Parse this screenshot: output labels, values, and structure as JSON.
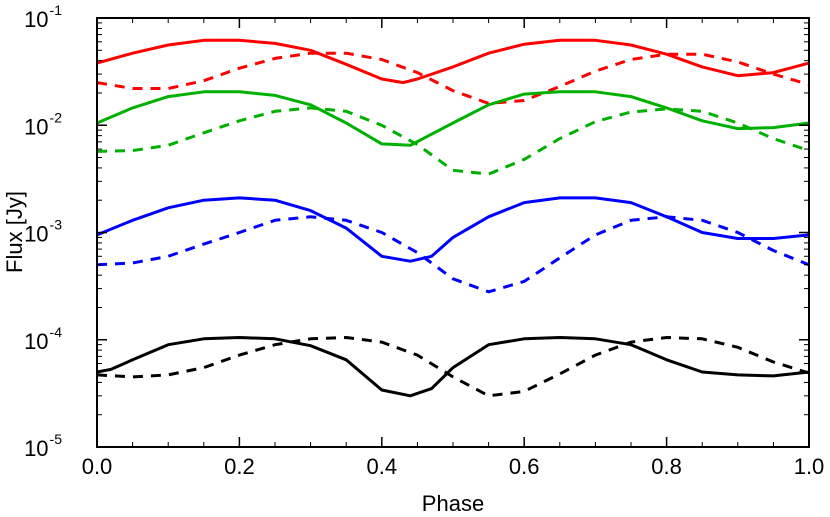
{
  "chart_data": {
    "type": "line",
    "xlabel": "Phase",
    "ylabel": "Flux [Jy]",
    "xlim": [
      0.0,
      1.0
    ],
    "ylim": [
      1e-05,
      0.1
    ],
    "yscale": "log",
    "grid": false,
    "x_ticks": [
      "0.0",
      "0.2",
      "0.4",
      "0.6",
      "0.8",
      "1.0"
    ],
    "x_tick_values": [
      0.0,
      0.2,
      0.4,
      0.6,
      0.8,
      1.0
    ],
    "y_ticks": [
      {
        "base": "10",
        "exp": "-5",
        "value": 1e-05
      },
      {
        "base": "10",
        "exp": "-4",
        "value": 0.0001
      },
      {
        "base": "10",
        "exp": "-3",
        "value": 0.001
      },
      {
        "base": "10",
        "exp": "-2",
        "value": 0.01
      },
      {
        "base": "10",
        "exp": "-1",
        "value": 0.1
      }
    ],
    "series": [
      {
        "color": "#ff0000",
        "style": "solid",
        "x": [
          0.0,
          0.05,
          0.1,
          0.15,
          0.2,
          0.25,
          0.3,
          0.35,
          0.4,
          0.43,
          0.45,
          0.5,
          0.55,
          0.6,
          0.65,
          0.7,
          0.75,
          0.8,
          0.85,
          0.9,
          0.95,
          1.0
        ],
        "values": [
          0.038,
          0.047,
          0.056,
          0.062,
          0.062,
          0.058,
          0.05,
          0.037,
          0.027,
          0.025,
          0.027,
          0.035,
          0.047,
          0.057,
          0.062,
          0.062,
          0.056,
          0.046,
          0.035,
          0.029,
          0.031,
          0.038
        ]
      },
      {
        "color": "#ff0000",
        "style": "dashed",
        "x": [
          0.0,
          0.05,
          0.1,
          0.15,
          0.2,
          0.25,
          0.3,
          0.35,
          0.4,
          0.45,
          0.5,
          0.55,
          0.6,
          0.65,
          0.7,
          0.75,
          0.8,
          0.85,
          0.9,
          0.95,
          1.0
        ],
        "values": [
          0.025,
          0.022,
          0.022,
          0.026,
          0.034,
          0.042,
          0.047,
          0.047,
          0.041,
          0.031,
          0.021,
          0.016,
          0.017,
          0.023,
          0.032,
          0.041,
          0.046,
          0.046,
          0.039,
          0.03,
          0.024
        ]
      },
      {
        "color": "#00b000",
        "style": "solid",
        "x": [
          0.0,
          0.05,
          0.1,
          0.15,
          0.2,
          0.25,
          0.3,
          0.35,
          0.4,
          0.44,
          0.5,
          0.55,
          0.6,
          0.65,
          0.7,
          0.75,
          0.8,
          0.85,
          0.9,
          0.95,
          1.0
        ],
        "values": [
          0.0105,
          0.0145,
          0.0185,
          0.0205,
          0.0205,
          0.019,
          0.0155,
          0.0105,
          0.0067,
          0.0065,
          0.0105,
          0.0155,
          0.0195,
          0.0205,
          0.0205,
          0.0185,
          0.0145,
          0.011,
          0.0093,
          0.0095,
          0.0105
        ]
      },
      {
        "color": "#00b000",
        "style": "dashed",
        "x": [
          0.0,
          0.05,
          0.1,
          0.15,
          0.2,
          0.25,
          0.3,
          0.35,
          0.4,
          0.45,
          0.5,
          0.55,
          0.6,
          0.65,
          0.7,
          0.75,
          0.8,
          0.85,
          0.9,
          0.95,
          1.0
        ],
        "values": [
          0.0057,
          0.0058,
          0.0065,
          0.0085,
          0.011,
          0.0135,
          0.0145,
          0.0135,
          0.01,
          0.0066,
          0.0038,
          0.0035,
          0.0048,
          0.0075,
          0.0108,
          0.0133,
          0.0142,
          0.0135,
          0.0105,
          0.0075,
          0.0058
        ]
      },
      {
        "color": "#0000ff",
        "style": "solid",
        "x": [
          0.0,
          0.05,
          0.1,
          0.15,
          0.2,
          0.25,
          0.3,
          0.35,
          0.4,
          0.44,
          0.47,
          0.5,
          0.55,
          0.6,
          0.65,
          0.7,
          0.75,
          0.8,
          0.85,
          0.9,
          0.95,
          1.0
        ],
        "values": [
          0.00095,
          0.0013,
          0.0017,
          0.002,
          0.0021,
          0.002,
          0.0016,
          0.0011,
          0.0006,
          0.00054,
          0.0006,
          0.0009,
          0.0014,
          0.0019,
          0.0021,
          0.0021,
          0.0019,
          0.0014,
          0.001,
          0.00088,
          0.00088,
          0.00095
        ]
      },
      {
        "color": "#0000ff",
        "style": "dashed",
        "x": [
          0.0,
          0.05,
          0.1,
          0.15,
          0.2,
          0.25,
          0.3,
          0.35,
          0.4,
          0.45,
          0.5,
          0.55,
          0.6,
          0.65,
          0.7,
          0.75,
          0.8,
          0.85,
          0.9,
          0.95,
          1.0
        ],
        "values": [
          0.0005,
          0.00052,
          0.0006,
          0.00078,
          0.001,
          0.0013,
          0.0014,
          0.0013,
          0.001,
          0.00065,
          0.00037,
          0.00028,
          0.00035,
          0.00058,
          0.00095,
          0.0013,
          0.0014,
          0.0013,
          0.001,
          0.00068,
          0.0005
        ]
      },
      {
        "color": "#000000",
        "style": "solid",
        "x": [
          0.0,
          0.02,
          0.05,
          0.1,
          0.15,
          0.2,
          0.25,
          0.3,
          0.35,
          0.4,
          0.44,
          0.47,
          0.5,
          0.55,
          0.6,
          0.65,
          0.7,
          0.75,
          0.8,
          0.85,
          0.9,
          0.95,
          1.0
        ],
        "values": [
          5e-05,
          5.3e-05,
          6.5e-05,
          9e-05,
          0.000102,
          0.000105,
          0.000102,
          8.8e-05,
          6.5e-05,
          3.4e-05,
          3e-05,
          3.5e-05,
          5.5e-05,
          9e-05,
          0.000102,
          0.000105,
          0.000102,
          9e-05,
          6.5e-05,
          5e-05,
          4.7e-05,
          4.6e-05,
          5e-05
        ]
      },
      {
        "color": "#000000",
        "style": "dashed",
        "x": [
          0.0,
          0.05,
          0.1,
          0.15,
          0.2,
          0.25,
          0.3,
          0.35,
          0.4,
          0.45,
          0.5,
          0.55,
          0.6,
          0.65,
          0.7,
          0.75,
          0.8,
          0.85,
          0.9,
          0.95,
          1.0
        ],
        "values": [
          4.7e-05,
          4.5e-05,
          4.7e-05,
          5.5e-05,
          7.2e-05,
          9e-05,
          0.000102,
          0.000105,
          9.5e-05,
          7.2e-05,
          4.5e-05,
          3e-05,
          3.3e-05,
          4.8e-05,
          7.2e-05,
          9.5e-05,
          0.000105,
          0.000102,
          8.5e-05,
          6.2e-05,
          4.9e-05
        ]
      }
    ]
  }
}
